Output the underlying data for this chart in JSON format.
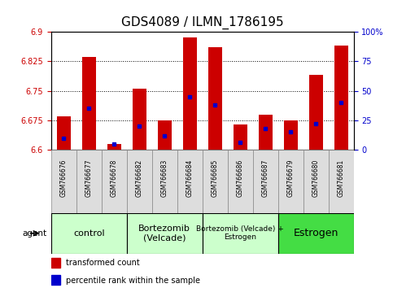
{
  "title": "GDS4089 / ILMN_1786195",
  "samples": [
    "GSM766676",
    "GSM766677",
    "GSM766678",
    "GSM766682",
    "GSM766683",
    "GSM766684",
    "GSM766685",
    "GSM766686",
    "GSM766687",
    "GSM766679",
    "GSM766680",
    "GSM766681"
  ],
  "transformed_counts": [
    6.685,
    6.835,
    6.615,
    6.755,
    6.675,
    6.885,
    6.86,
    6.665,
    6.69,
    6.675,
    6.79,
    6.865
  ],
  "percentile_ranks": [
    10,
    35,
    5,
    20,
    12,
    45,
    38,
    6,
    18,
    15,
    22,
    40
  ],
  "ylim_left": [
    6.6,
    6.9
  ],
  "yticks_left": [
    6.6,
    6.675,
    6.75,
    6.825,
    6.9
  ],
  "ytick_labels_left": [
    "6.6",
    "6.675",
    "6.75",
    "6.825",
    "6.9"
  ],
  "ylim_right": [
    0,
    100
  ],
  "yticks_right": [
    0,
    25,
    50,
    75,
    100
  ],
  "ytick_labels_right": [
    "0",
    "25",
    "50",
    "75",
    "100%"
  ],
  "bar_bottom": 6.6,
  "bar_color": "#cc0000",
  "percentile_color": "#0000cc",
  "groups": [
    {
      "label": "control",
      "start": 0,
      "end": 3,
      "color": "#ccffcc",
      "fontsize": 8
    },
    {
      "label": "Bortezomib\n(Velcade)",
      "start": 3,
      "end": 6,
      "color": "#ccffcc",
      "fontsize": 8
    },
    {
      "label": "Bortezomib (Velcade) +\nEstrogen",
      "start": 6,
      "end": 9,
      "color": "#ccffcc",
      "fontsize": 6.5
    },
    {
      "label": "Estrogen",
      "start": 9,
      "end": 12,
      "color": "#44dd44",
      "fontsize": 9
    }
  ],
  "bar_width": 0.55,
  "bg_color": "#ffffff",
  "tick_label_color_left": "#cc0000",
  "tick_label_color_right": "#0000cc",
  "title_fontsize": 11,
  "legend_red": "transformed count",
  "legend_blue": "percentile rank within the sample",
  "sample_cell_color": "#dddddd",
  "sample_cell_edge": "#888888"
}
